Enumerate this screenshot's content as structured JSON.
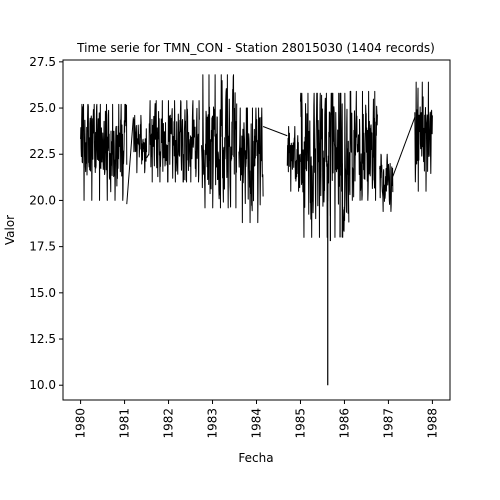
{
  "chart_data": {
    "type": "line",
    "title": "Time serie for TMN_CON - Station 28015030 (1404 records)",
    "xlabel": "Fecha",
    "ylabel": "Valor",
    "xlim": [
      1979.6,
      1988.4
    ],
    "ylim": [
      9.2,
      27.6
    ],
    "x_ticks": [
      1980,
      1981,
      1982,
      1983,
      1984,
      1985,
      1986,
      1987,
      1988
    ],
    "x_tick_labels": [
      "1980",
      "1981",
      "1982",
      "1983",
      "1984",
      "1985",
      "1986",
      "1987",
      "1988"
    ],
    "y_ticks": [
      10.0,
      12.5,
      15.0,
      17.5,
      20.0,
      22.5,
      25.0,
      27.5
    ],
    "y_tick_labels": [
      "10.0",
      "12.5",
      "15.0",
      "17.5",
      "20.0",
      "22.5",
      "25.0",
      "27.5"
    ],
    "grid": false,
    "series": [
      {
        "color": "#000000",
        "segments": [
          {
            "x_start": 1980.0,
            "x_end": 1981.05,
            "min": 20.0,
            "max": 25.2,
            "mean": 22.9
          },
          {
            "x_start": 1981.2,
            "x_end": 1981.5,
            "min": 21.5,
            "max": 24.6,
            "mean": 23.2
          },
          {
            "x_start": 1981.55,
            "x_end": 1982.7,
            "min": 21.0,
            "max": 25.4,
            "mean": 23.0
          },
          {
            "x_start": 1982.75,
            "x_end": 1983.55,
            "min": 19.6,
            "max": 26.8,
            "mean": 23.2
          },
          {
            "x_start": 1983.6,
            "x_end": 1984.15,
            "min": 18.8,
            "max": 25.0,
            "mean": 22.3
          },
          {
            "x_start": 1984.7,
            "x_end": 1985.0,
            "min": 20.5,
            "max": 24.0,
            "mean": 22.2
          },
          {
            "x_start": 1985.0,
            "x_end": 1986.1,
            "min": 18.0,
            "max": 25.8,
            "mean": 22.5
          },
          {
            "x_start": 1986.1,
            "x_end": 1986.75,
            "min": 20.0,
            "max": 25.9,
            "mean": 22.8
          },
          {
            "x_start": 1986.8,
            "x_end": 1987.1,
            "min": 19.4,
            "max": 22.5,
            "mean": 21.0
          },
          {
            "x_start": 1987.6,
            "x_end": 1988.0,
            "min": 20.5,
            "max": 26.4,
            "mean": 23.3
          }
        ],
        "gap_links": [
          {
            "x": [
              1981.05,
              1981.2
            ],
            "y": [
              19.8,
              24.5
            ]
          },
          {
            "x": [
              1981.5,
              1981.55
            ],
            "y": [
              22.3,
              22.5
            ]
          },
          {
            "x": [
              1984.15,
              1984.7
            ],
            "y": [
              24.0,
              23.5
            ]
          },
          {
            "x": [
              1987.1,
              1987.6
            ],
            "y": [
              21.3,
              24.5
            ]
          }
        ],
        "spikes": [
          {
            "x": 1985.62,
            "y": 10.0
          },
          {
            "x": 1985.68,
            "y": 17.8
          },
          {
            "x": 1985.9,
            "y": 18.0
          },
          {
            "x": 1985.95,
            "y": 18.0
          }
        ]
      }
    ]
  }
}
